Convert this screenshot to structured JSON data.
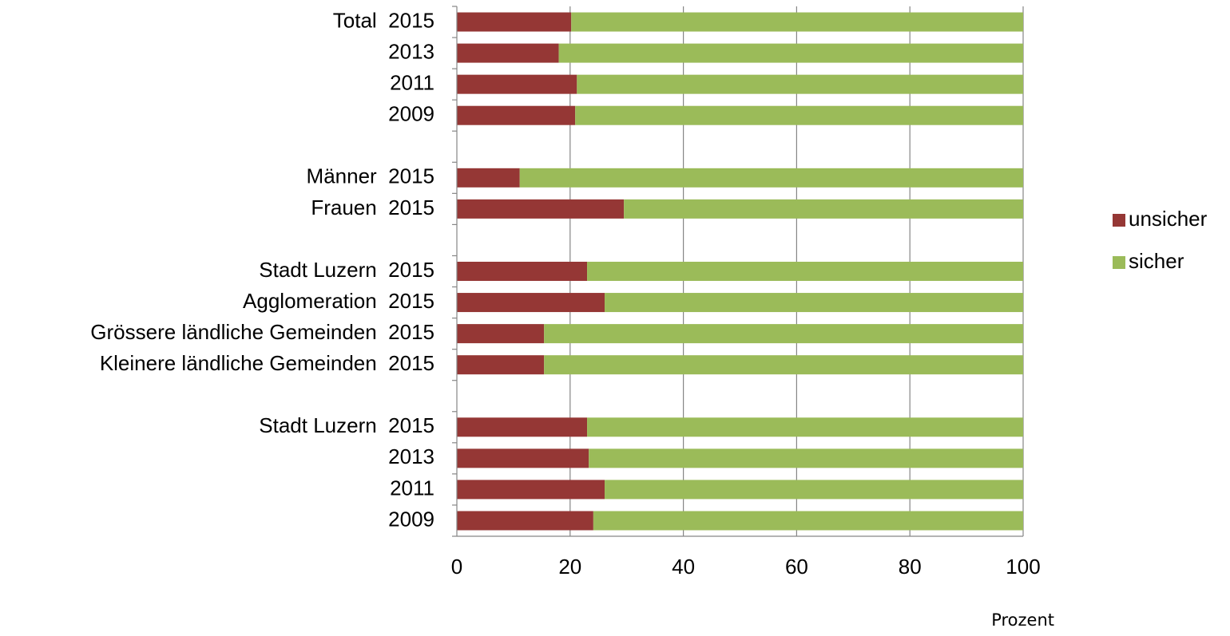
{
  "chart_data": {
    "type": "stacked_barh",
    "categories": [
      "Total  2015",
      "2013",
      "2011",
      "2009",
      null,
      "Männer  2015",
      "Frauen  2015",
      null,
      "Stadt Luzern  2015",
      "Agglomeration  2015",
      "Grössere ländliche Gemeinden  2015",
      "Kleinere ländliche Gemeinden  2015",
      null,
      "Stadt Luzern  2015",
      "2013",
      "2011",
      "2009"
    ],
    "series": [
      {
        "name": "unsicher",
        "color": "#953735",
        "values": [
          20.2,
          18.0,
          21.2,
          20.9,
          null,
          11.1,
          29.5,
          null,
          23.0,
          26.1,
          15.4,
          15.4,
          null,
          23.0,
          23.3,
          26.1,
          24.1
        ]
      },
      {
        "name": "sicher",
        "color": "#9bbb59",
        "values": [
          79.8,
          82.0,
          78.8,
          79.1,
          null,
          88.9,
          70.5,
          null,
          77.0,
          73.9,
          84.6,
          84.6,
          null,
          77.0,
          76.7,
          73.9,
          75.9
        ]
      }
    ],
    "xlim": [
      0,
      100
    ],
    "xticks": [
      0,
      20,
      40,
      60,
      80,
      100
    ],
    "xlabel": "Prozent",
    "grid": true,
    "legend": "right"
  }
}
